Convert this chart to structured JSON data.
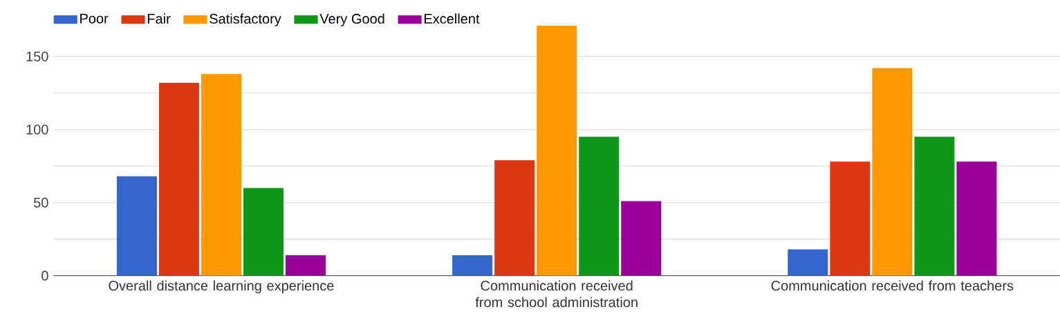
{
  "chart_data": {
    "type": "bar",
    "categories": [
      "Overall distance learning experience",
      "Communication received from school administration",
      "Communication received from teachers"
    ],
    "series": [
      {
        "name": "Poor",
        "color": "#3366cc",
        "values": [
          68,
          14,
          18
        ]
      },
      {
        "name": "Fair",
        "color": "#dc3912",
        "values": [
          132,
          79,
          78
        ]
      },
      {
        "name": "Satisfactory",
        "color": "#ff9900",
        "values": [
          138,
          171,
          142
        ]
      },
      {
        "name": "Very Good",
        "color": "#109618",
        "values": [
          60,
          95,
          95
        ]
      },
      {
        "name": "Excellent",
        "color": "#990099",
        "values": [
          14,
          51,
          78
        ]
      }
    ],
    "ylim": [
      0,
      171
    ],
    "yticks": [
      0,
      {
        "value": 25,
        "label": null
      },
      50,
      {
        "value": 75,
        "label": null
      },
      100,
      {
        "value": 125,
        "label": null
      },
      150
    ],
    "grid": "y",
    "legend": "top left"
  }
}
